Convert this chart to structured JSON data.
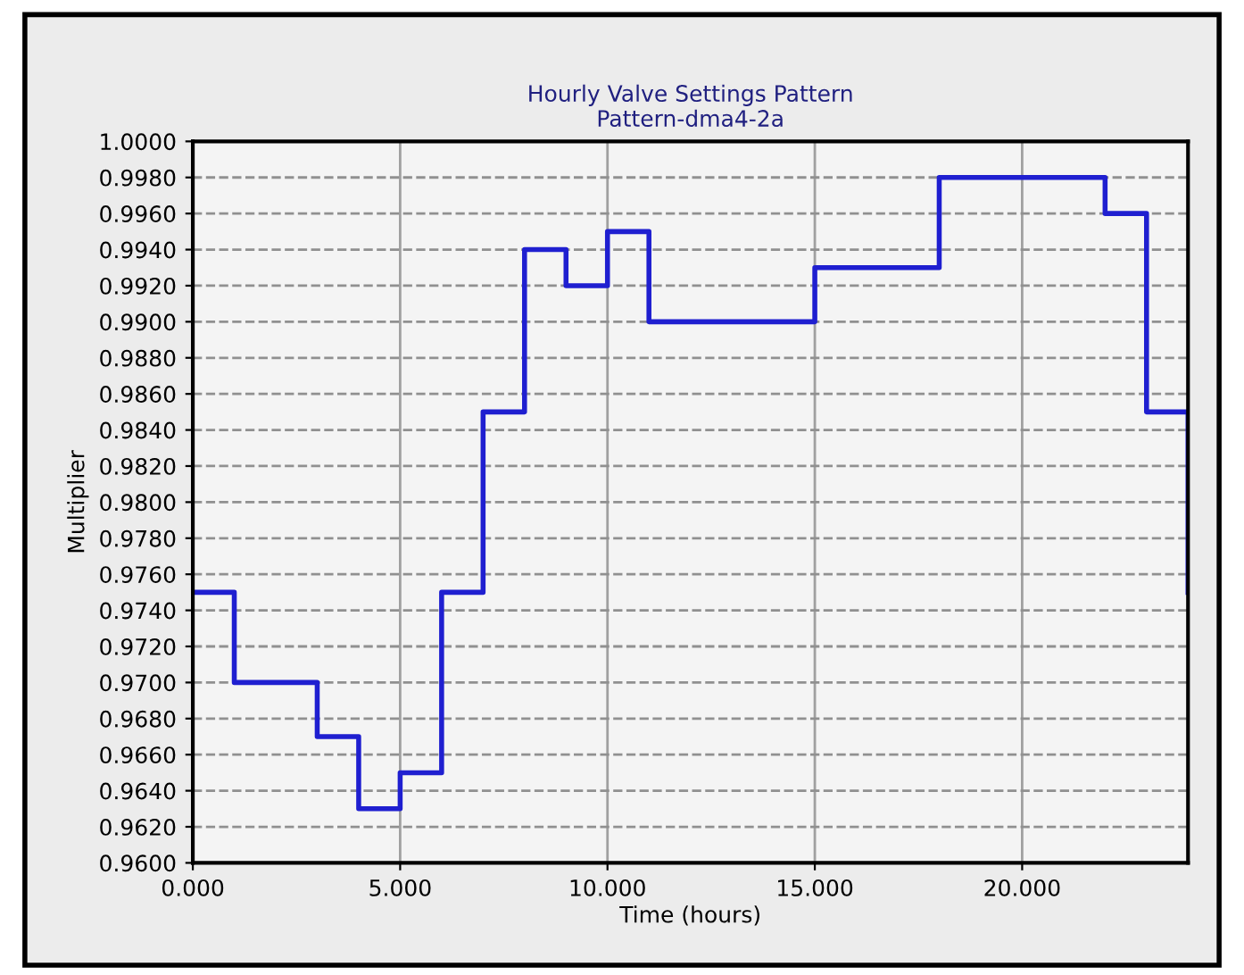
{
  "chart_data": {
    "type": "step",
    "title": "Hourly Valve Settings Pattern",
    "subtitle": "Pattern-dma4-2a",
    "xlabel": "Time (hours)",
    "ylabel": "Multiplier",
    "x": [
      0,
      1,
      2,
      3,
      4,
      5,
      6,
      7,
      8,
      9,
      10,
      11,
      12,
      13,
      14,
      15,
      16,
      17,
      18,
      19,
      20,
      21,
      22,
      23,
      24
    ],
    "series": [
      {
        "color": "#1f1fd0",
        "values": [
          0.975,
          0.97,
          0.97,
          0.967,
          0.963,
          0.965,
          0.975,
          0.985,
          0.994,
          0.992,
          0.995,
          0.99,
          0.99,
          0.99,
          0.99,
          0.993,
          0.993,
          0.993,
          0.998,
          0.998,
          0.998,
          0.998,
          0.996,
          0.985,
          0.975
        ]
      }
    ],
    "xlim": [
      0,
      24
    ],
    "ylim": [
      0.96,
      1.0
    ],
    "xticks": [
      {
        "value": 0,
        "label": "0.000"
      },
      {
        "value": 5,
        "label": "5.000"
      },
      {
        "value": 10,
        "label": "10.000"
      },
      {
        "value": 15,
        "label": "15.000"
      },
      {
        "value": 20,
        "label": "20.000"
      }
    ],
    "yticks": [
      {
        "value": 0.96,
        "label": "0.9600"
      },
      {
        "value": 0.962,
        "label": "0.9620"
      },
      {
        "value": 0.964,
        "label": "0.9640"
      },
      {
        "value": 0.966,
        "label": "0.9660"
      },
      {
        "value": 0.968,
        "label": "0.9680"
      },
      {
        "value": 0.97,
        "label": "0.9700"
      },
      {
        "value": 0.972,
        "label": "0.9720"
      },
      {
        "value": 0.974,
        "label": "0.9740"
      },
      {
        "value": 0.976,
        "label": "0.9760"
      },
      {
        "value": 0.978,
        "label": "0.9780"
      },
      {
        "value": 0.98,
        "label": "0.9800"
      },
      {
        "value": 0.982,
        "label": "0.9820"
      },
      {
        "value": 0.984,
        "label": "0.9840"
      },
      {
        "value": 0.986,
        "label": "0.9860"
      },
      {
        "value": 0.988,
        "label": "0.9880"
      },
      {
        "value": 0.99,
        "label": "0.9900"
      },
      {
        "value": 0.992,
        "label": "0.9920"
      },
      {
        "value": 0.994,
        "label": "0.9940"
      },
      {
        "value": 0.996,
        "label": "0.9960"
      },
      {
        "value": 0.998,
        "label": "0.9980"
      },
      {
        "value": 1.0,
        "label": "1.0000"
      }
    ],
    "grid": true,
    "legend": false,
    "line_style": "solid"
  }
}
